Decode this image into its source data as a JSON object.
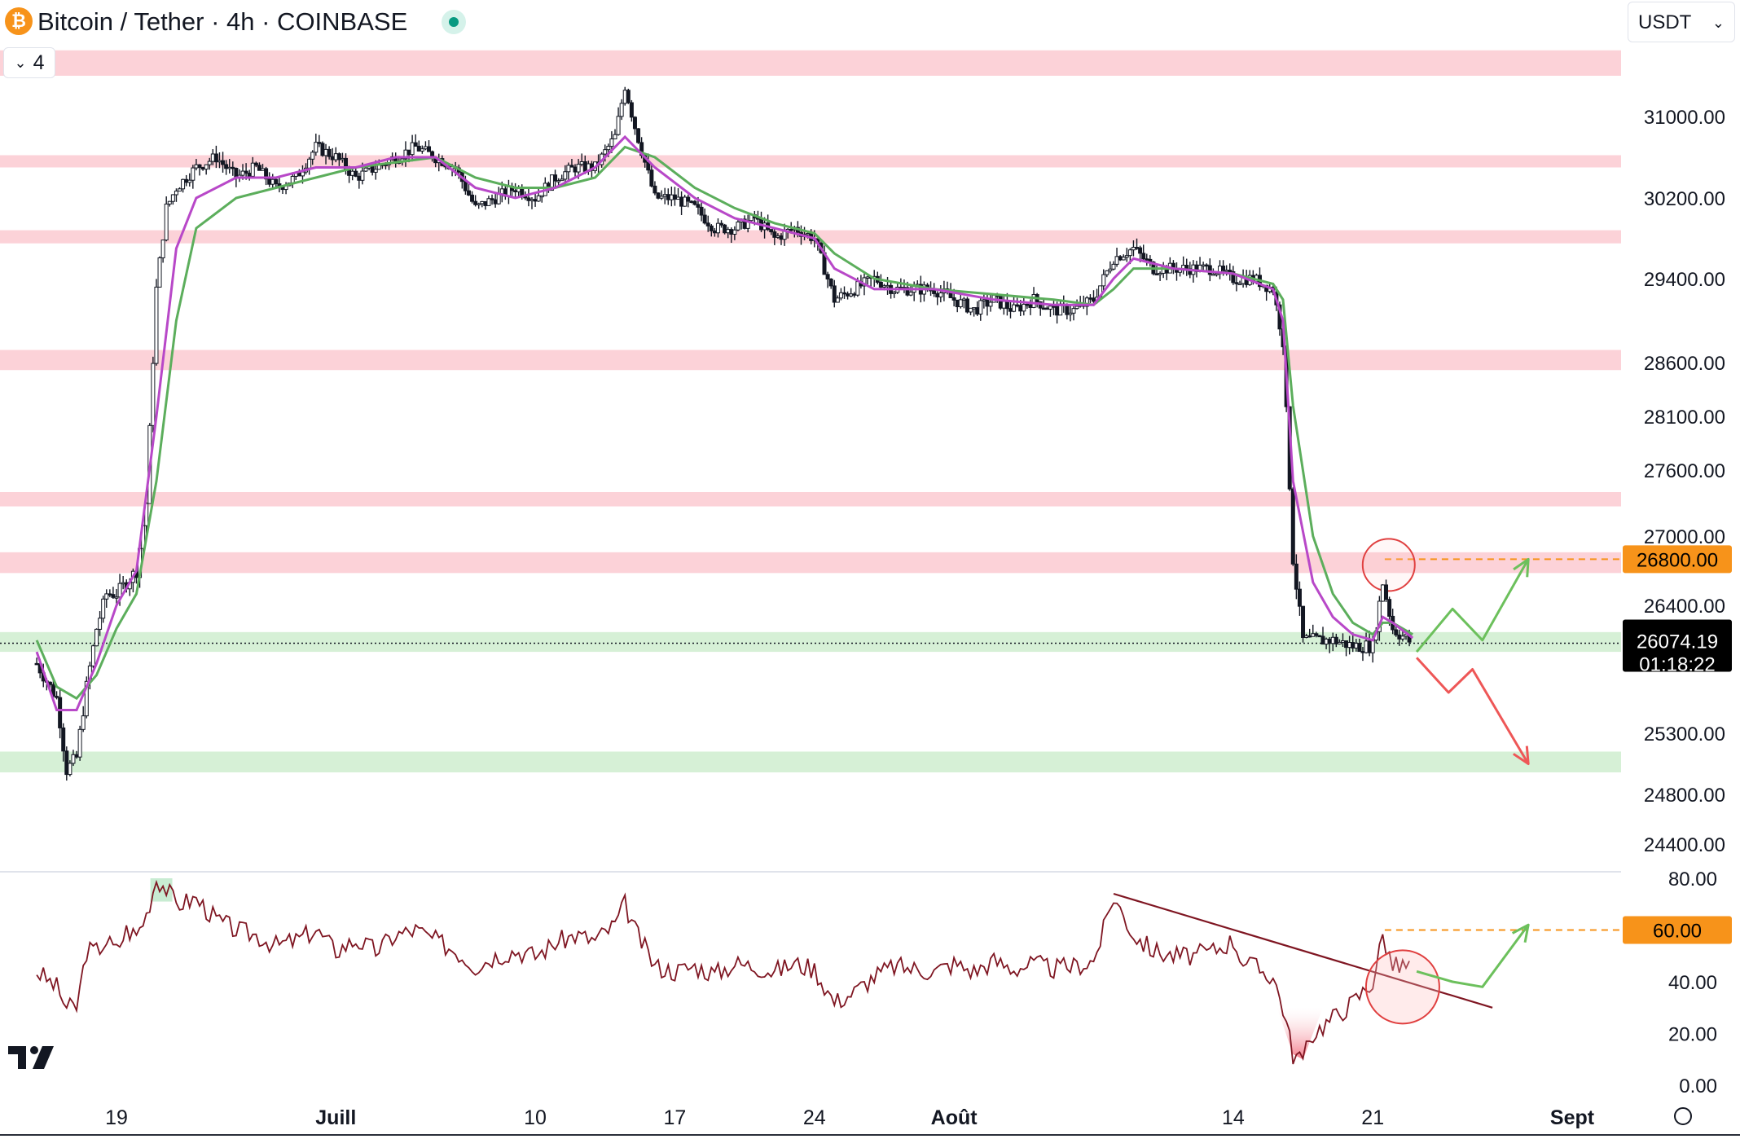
{
  "header": {
    "title": "Bitcoin / Tether · 4h · COINBASE",
    "collapse_count": "4",
    "currency": "USDT"
  },
  "colors": {
    "resistance_zone": "#fcd2d8",
    "support_zone": "#d6f0d6",
    "ema_fast": "#b848c8",
    "ema_slow": "#5cae5c",
    "rsi": "#7f1622",
    "price_tag": "#f7931a",
    "last_price_tag": "#000000",
    "arrow_up": "#6cc05c",
    "arrow_down": "#ee5757",
    "circle": "#e04040"
  },
  "chart_data": {
    "type": "candlestick",
    "timeframe": "4h",
    "price_axis": {
      "labels": [
        "31000.00",
        "30200.00",
        "29400.00",
        "28600.00",
        "28100.00",
        "27600.00",
        "27000.00",
        "26400.00",
        "25300.00",
        "24800.00",
        "24400.00"
      ],
      "values": [
        31000,
        30200,
        29400,
        28600,
        28100,
        27600,
        27000,
        26400,
        25300,
        24800,
        24400
      ]
    },
    "x_axis": {
      "labels": [
        "19",
        "Juill",
        "10",
        "17",
        "24",
        "Août",
        "14",
        "21",
        "Sept"
      ],
      "bold": [
        false,
        true,
        false,
        false,
        false,
        true,
        false,
        false,
        true
      ],
      "days": [
        19,
        30,
        40,
        47,
        54,
        61,
        75,
        82,
        92
      ]
    },
    "highlighted_level": {
      "label": "26800.00",
      "value": 26800
    },
    "last_price": {
      "label": "26074.19",
      "countdown": "01:18:22",
      "value": 26074.19
    },
    "resistance_zones": [
      {
        "low": 31400,
        "high": 31650
      },
      {
        "low": 30500,
        "high": 30620
      },
      {
        "low": 29750,
        "high": 29880
      },
      {
        "low": 28530,
        "high": 28720
      },
      {
        "low": 27270,
        "high": 27400
      },
      {
        "low": 26680,
        "high": 26860
      }
    ],
    "support_zones": [
      {
        "low": 26000,
        "high": 26170
      },
      {
        "low": 24980,
        "high": 25150
      }
    ],
    "candles_path": [
      [
        15,
        25900
      ],
      [
        16,
        25600
      ],
      [
        16.5,
        25000
      ],
      [
        17,
        25100
      ],
      [
        17.5,
        25700
      ],
      [
        18,
        26200
      ],
      [
        18.5,
        26500
      ],
      [
        19,
        26500
      ],
      [
        19.5,
        26600
      ],
      [
        20,
        26700
      ],
      [
        20.5,
        27300
      ],
      [
        21,
        29300
      ],
      [
        21.5,
        30100
      ],
      [
        22,
        30300
      ],
      [
        22.5,
        30400
      ],
      [
        23,
        30500
      ],
      [
        24,
        30600
      ],
      [
        25,
        30400
      ],
      [
        26,
        30500
      ],
      [
        27,
        30300
      ],
      [
        28,
        30400
      ],
      [
        29,
        30700
      ],
      [
        30,
        30600
      ],
      [
        31,
        30400
      ],
      [
        32,
        30500
      ],
      [
        33,
        30600
      ],
      [
        34,
        30700
      ],
      [
        35,
        30600
      ],
      [
        36,
        30500
      ],
      [
        37,
        30100
      ],
      [
        38,
        30200
      ],
      [
        39,
        30300
      ],
      [
        40,
        30200
      ],
      [
        41,
        30400
      ],
      [
        42,
        30500
      ],
      [
        43,
        30500
      ],
      [
        44,
        30800
      ],
      [
        44.5,
        31300
      ],
      [
        45,
        30900
      ],
      [
        46,
        30200
      ],
      [
        47,
        30200
      ],
      [
        48,
        30100
      ],
      [
        49,
        29900
      ],
      [
        50,
        29900
      ],
      [
        51,
        30000
      ],
      [
        52,
        29800
      ],
      [
        53,
        29900
      ],
      [
        54,
        29800
      ],
      [
        55,
        29200
      ],
      [
        56,
        29300
      ],
      [
        57,
        29400
      ],
      [
        58,
        29300
      ],
      [
        59,
        29300
      ],
      [
        60,
        29300
      ],
      [
        61,
        29200
      ],
      [
        62,
        29100
      ],
      [
        63,
        29200
      ],
      [
        64,
        29100
      ],
      [
        65,
        29200
      ],
      [
        66,
        29100
      ],
      [
        67,
        29100
      ],
      [
        68,
        29200
      ],
      [
        69,
        29600
      ],
      [
        70,
        29700
      ],
      [
        71,
        29500
      ],
      [
        72,
        29500
      ],
      [
        73,
        29500
      ],
      [
        74,
        29500
      ],
      [
        75,
        29400
      ],
      [
        76,
        29400
      ],
      [
        77,
        29300
      ],
      [
        77.5,
        28800
      ],
      [
        78,
        26800
      ],
      [
        78.5,
        26100
      ],
      [
        79,
        26100
      ],
      [
        80,
        26100
      ],
      [
        81,
        26050
      ],
      [
        82,
        26050
      ],
      [
        82.5,
        26600
      ],
      [
        83,
        26200
      ],
      [
        84,
        26070
      ]
    ],
    "ema_fast_path": [
      [
        15,
        26000
      ],
      [
        16,
        25500
      ],
      [
        17,
        25500
      ],
      [
        18,
        25900
      ],
      [
        19,
        26400
      ],
      [
        20,
        26700
      ],
      [
        21,
        28100
      ],
      [
        22,
        29700
      ],
      [
        23,
        30200
      ],
      [
        25,
        30400
      ],
      [
        27,
        30400
      ],
      [
        29,
        30500
      ],
      [
        31,
        30500
      ],
      [
        33,
        30600
      ],
      [
        35,
        30600
      ],
      [
        37,
        30300
      ],
      [
        39,
        30200
      ],
      [
        41,
        30300
      ],
      [
        43,
        30500
      ],
      [
        44.5,
        30800
      ],
      [
        46,
        30500
      ],
      [
        48,
        30200
      ],
      [
        50,
        30000
      ],
      [
        52,
        29900
      ],
      [
        54,
        29800
      ],
      [
        55,
        29500
      ],
      [
        57,
        29300
      ],
      [
        60,
        29300
      ],
      [
        63,
        29200
      ],
      [
        66,
        29150
      ],
      [
        68,
        29150
      ],
      [
        69,
        29400
      ],
      [
        70,
        29600
      ],
      [
        72,
        29500
      ],
      [
        75,
        29450
      ],
      [
        77,
        29300
      ],
      [
        77.5,
        29000
      ],
      [
        78,
        27500
      ],
      [
        79,
        26600
      ],
      [
        80,
        26300
      ],
      [
        81,
        26150
      ],
      [
        82,
        26100
      ],
      [
        82.5,
        26300
      ],
      [
        83,
        26250
      ],
      [
        84,
        26120
      ]
    ],
    "ema_slow_path": [
      [
        15,
        26100
      ],
      [
        16,
        25700
      ],
      [
        17,
        25600
      ],
      [
        18,
        25800
      ],
      [
        19,
        26200
      ],
      [
        20,
        26500
      ],
      [
        21,
        27500
      ],
      [
        22,
        29000
      ],
      [
        23,
        29900
      ],
      [
        25,
        30200
      ],
      [
        27,
        30300
      ],
      [
        29,
        30400
      ],
      [
        31,
        30500
      ],
      [
        33,
        30550
      ],
      [
        35,
        30600
      ],
      [
        37,
        30400
      ],
      [
        39,
        30300
      ],
      [
        41,
        30300
      ],
      [
        43,
        30400
      ],
      [
        44.5,
        30700
      ],
      [
        46,
        30600
      ],
      [
        48,
        30300
      ],
      [
        50,
        30100
      ],
      [
        52,
        29950
      ],
      [
        54,
        29850
      ],
      [
        55,
        29650
      ],
      [
        57,
        29400
      ],
      [
        60,
        29300
      ],
      [
        63,
        29250
      ],
      [
        66,
        29200
      ],
      [
        68,
        29150
      ],
      [
        69,
        29300
      ],
      [
        70,
        29500
      ],
      [
        72,
        29500
      ],
      [
        75,
        29450
      ],
      [
        77,
        29350
      ],
      [
        77.5,
        29200
      ],
      [
        78,
        28200
      ],
      [
        79,
        27000
      ],
      [
        80,
        26500
      ],
      [
        81,
        26250
      ],
      [
        82,
        26150
      ],
      [
        82.5,
        26250
      ],
      [
        83,
        26250
      ],
      [
        84,
        26150
      ]
    ],
    "forecast_up": [
      [
        84.2,
        26000
      ],
      [
        86,
        26370
      ],
      [
        87.5,
        26100
      ],
      [
        89.8,
        26800
      ]
    ],
    "forecast_down": [
      [
        84.2,
        25950
      ],
      [
        85.8,
        25650
      ],
      [
        87,
        25850
      ],
      [
        89.8,
        25050
      ]
    ],
    "circle_price": {
      "day": 82.8,
      "value": 26750
    },
    "rsi": {
      "axis_labels": [
        "80.00",
        "60.00",
        "40.00",
        "20.00",
        "0.00"
      ],
      "axis_values": [
        80,
        60,
        40,
        20,
        0
      ],
      "highlighted_level": {
        "label": "60.00",
        "value": 60
      },
      "path": [
        [
          15,
          44
        ],
        [
          16,
          38
        ],
        [
          16.5,
          30
        ],
        [
          17,
          30
        ],
        [
          17.5,
          52
        ],
        [
          18,
          52
        ],
        [
          18.5,
          56
        ],
        [
          19,
          52
        ],
        [
          19.5,
          60
        ],
        [
          20,
          58
        ],
        [
          20.5,
          66
        ],
        [
          21,
          80
        ],
        [
          21.5,
          76
        ],
        [
          22,
          70
        ],
        [
          23,
          72
        ],
        [
          24,
          64
        ],
        [
          25,
          60
        ],
        [
          26,
          58
        ],
        [
          27,
          54
        ],
        [
          28,
          56
        ],
        [
          29,
          60
        ],
        [
          30,
          52
        ],
        [
          31,
          56
        ],
        [
          32,
          52
        ],
        [
          33,
          58
        ],
        [
          34,
          60
        ],
        [
          35,
          56
        ],
        [
          36,
          52
        ],
        [
          37,
          46
        ],
        [
          38,
          50
        ],
        [
          39,
          52
        ],
        [
          40,
          50
        ],
        [
          41,
          55
        ],
        [
          42,
          58
        ],
        [
          43,
          56
        ],
        [
          44,
          62
        ],
        [
          44.5,
          70
        ],
        [
          45,
          60
        ],
        [
          46,
          46
        ],
        [
          47,
          44
        ],
        [
          48,
          46
        ],
        [
          49,
          43
        ],
        [
          50,
          47
        ],
        [
          51,
          46
        ],
        [
          52,
          44
        ],
        [
          53,
          47
        ],
        [
          54,
          45
        ],
        [
          55,
          32
        ],
        [
          56,
          36
        ],
        [
          57,
          42
        ],
        [
          58,
          46
        ],
        [
          59,
          45
        ],
        [
          60,
          44
        ],
        [
          61,
          47
        ],
        [
          62,
          44
        ],
        [
          63,
          48
        ],
        [
          64,
          45
        ],
        [
          65,
          47
        ],
        [
          66,
          45
        ],
        [
          67,
          46
        ],
        [
          68,
          48
        ],
        [
          68.5,
          60
        ],
        [
          69,
          73
        ],
        [
          70,
          58
        ],
        [
          71,
          52
        ],
        [
          72,
          50
        ],
        [
          73,
          50
        ],
        [
          74,
          52
        ],
        [
          75,
          56
        ],
        [
          75.5,
          48
        ],
        [
          76,
          46
        ],
        [
          77,
          42
        ],
        [
          77.5,
          30
        ],
        [
          78,
          12
        ],
        [
          78.5,
          10
        ],
        [
          79,
          20
        ],
        [
          80,
          26
        ],
        [
          81,
          32
        ],
        [
          82,
          40
        ],
        [
          82.5,
          58
        ],
        [
          83,
          46
        ],
        [
          84,
          46
        ]
      ],
      "trendline": [
        [
          69,
          74
        ],
        [
          88,
          30
        ]
      ],
      "forecast_up": [
        [
          84.2,
          44
        ],
        [
          86,
          40
        ],
        [
          87.5,
          38
        ],
        [
          89.8,
          62
        ]
      ],
      "circle": {
        "day": 83.5,
        "value": 38
      }
    }
  }
}
